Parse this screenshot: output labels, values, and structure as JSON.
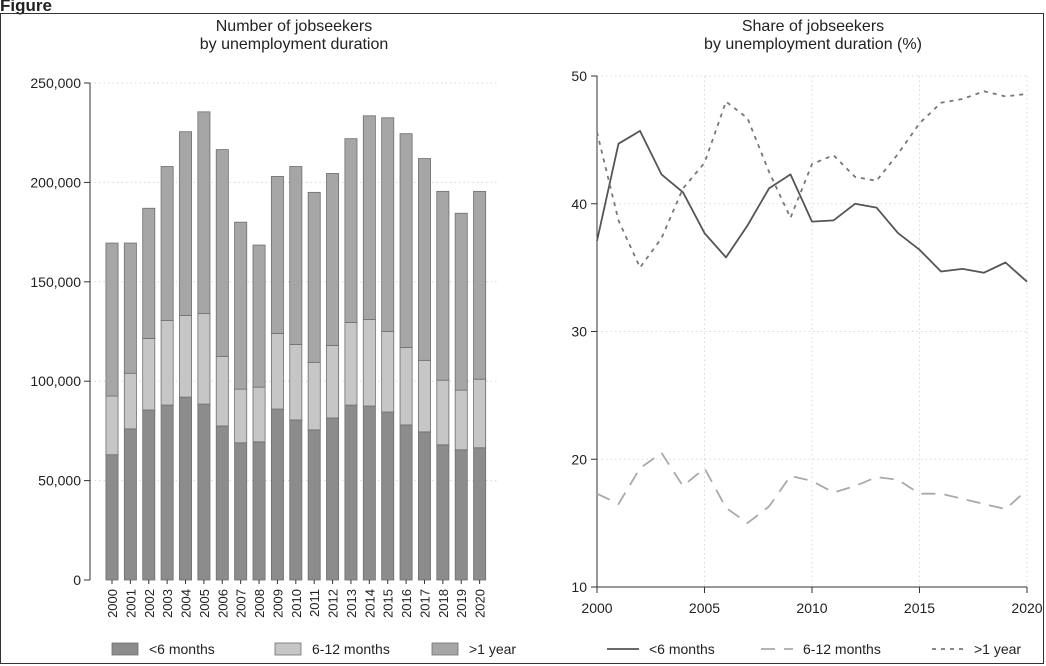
{
  "figure": {
    "title": "Figure"
  },
  "chart_data": [
    {
      "type": "bar",
      "stacked": true,
      "title": "Number of jobseekers\nby unemployment duration",
      "xlabel": "",
      "ylabel": "",
      "ylim": [
        0,
        250000
      ],
      "yticks": [
        0,
        50000,
        100000,
        150000,
        200000,
        250000
      ],
      "ytick_labels": [
        "0",
        "50,000",
        "100,000",
        "150,000",
        "200,000",
        "250,000"
      ],
      "grid": true,
      "legend_position": "bottom",
      "categories": [
        "2000",
        "2001",
        "2002",
        "2003",
        "2004",
        "2005",
        "2006",
        "2007",
        "2008",
        "2009",
        "2010",
        "2011",
        "2012",
        "2013",
        "2014",
        "2015",
        "2016",
        "2017",
        "2018",
        "2019",
        "2020"
      ],
      "series": [
        {
          "name": "<6 months",
          "color": "#8c8c8c",
          "values": [
            63000,
            76000,
            85500,
            88000,
            92000,
            88500,
            77500,
            69000,
            69500,
            86000,
            80500,
            75500,
            81500,
            88000,
            87500,
            84500,
            78000,
            74500,
            68000,
            65500,
            66500
          ]
        },
        {
          "name": "6-12 months",
          "color": "#c6c6c6",
          "values": [
            29500,
            28000,
            36000,
            42500,
            41000,
            45500,
            35000,
            27000,
            27500,
            38000,
            38000,
            34000,
            36500,
            41500,
            43500,
            40500,
            39000,
            36000,
            32500,
            30000,
            34500
          ]
        },
        {
          "name": ">1 year",
          "color": "#a6a6a6",
          "values": [
            77000,
            65500,
            65500,
            77500,
            92500,
            101500,
            104000,
            84000,
            71500,
            79000,
            89500,
            85500,
            86500,
            92500,
            102500,
            107500,
            107500,
            101500,
            95000,
            89000,
            94500
          ]
        }
      ]
    },
    {
      "type": "line",
      "title": "Share of jobseekers\nby unemployment duration (%)",
      "xlabel": "",
      "ylabel": "",
      "xlim": [
        2000,
        2020
      ],
      "ylim": [
        10,
        50
      ],
      "xticks": [
        2000,
        2005,
        2010,
        2015,
        2020
      ],
      "yticks": [
        10,
        20,
        30,
        40,
        50
      ],
      "grid": true,
      "legend_position": "bottom",
      "x": [
        2000,
        2001,
        2002,
        2003,
        2004,
        2005,
        2006,
        2007,
        2008,
        2009,
        2010,
        2011,
        2012,
        2013,
        2014,
        2015,
        2016,
        2017,
        2018,
        2019,
        2020
      ],
      "series": [
        {
          "name": "<6 months",
          "color": "#555555",
          "dash": "solid",
          "values": [
            37.1,
            44.7,
            45.7,
            42.3,
            40.9,
            37.7,
            35.8,
            38.3,
            41.2,
            42.3,
            38.6,
            38.7,
            40.0,
            39.7,
            37.7,
            36.4,
            34.7,
            34.9,
            34.6,
            35.4,
            33.9
          ]
        },
        {
          "name": "6-12 months",
          "color": "#aaaaaa",
          "dash": "long",
          "values": [
            17.3,
            16.5,
            19.3,
            20.5,
            17.9,
            19.3,
            16.2,
            15.0,
            16.3,
            18.7,
            18.3,
            17.4,
            17.9,
            18.6,
            18.4,
            17.3,
            17.3,
            16.9,
            16.5,
            16.1,
            17.6
          ]
        },
        {
          "name": ">1 year",
          "color": "#777777",
          "dash": "short",
          "values": [
            45.6,
            38.7,
            35.0,
            37.3,
            41.2,
            43.2,
            48.0,
            46.7,
            42.5,
            38.9,
            43.1,
            43.8,
            42.1,
            41.8,
            43.9,
            46.3,
            47.9,
            48.2,
            48.8,
            48.4,
            48.6
          ]
        }
      ]
    }
  ]
}
